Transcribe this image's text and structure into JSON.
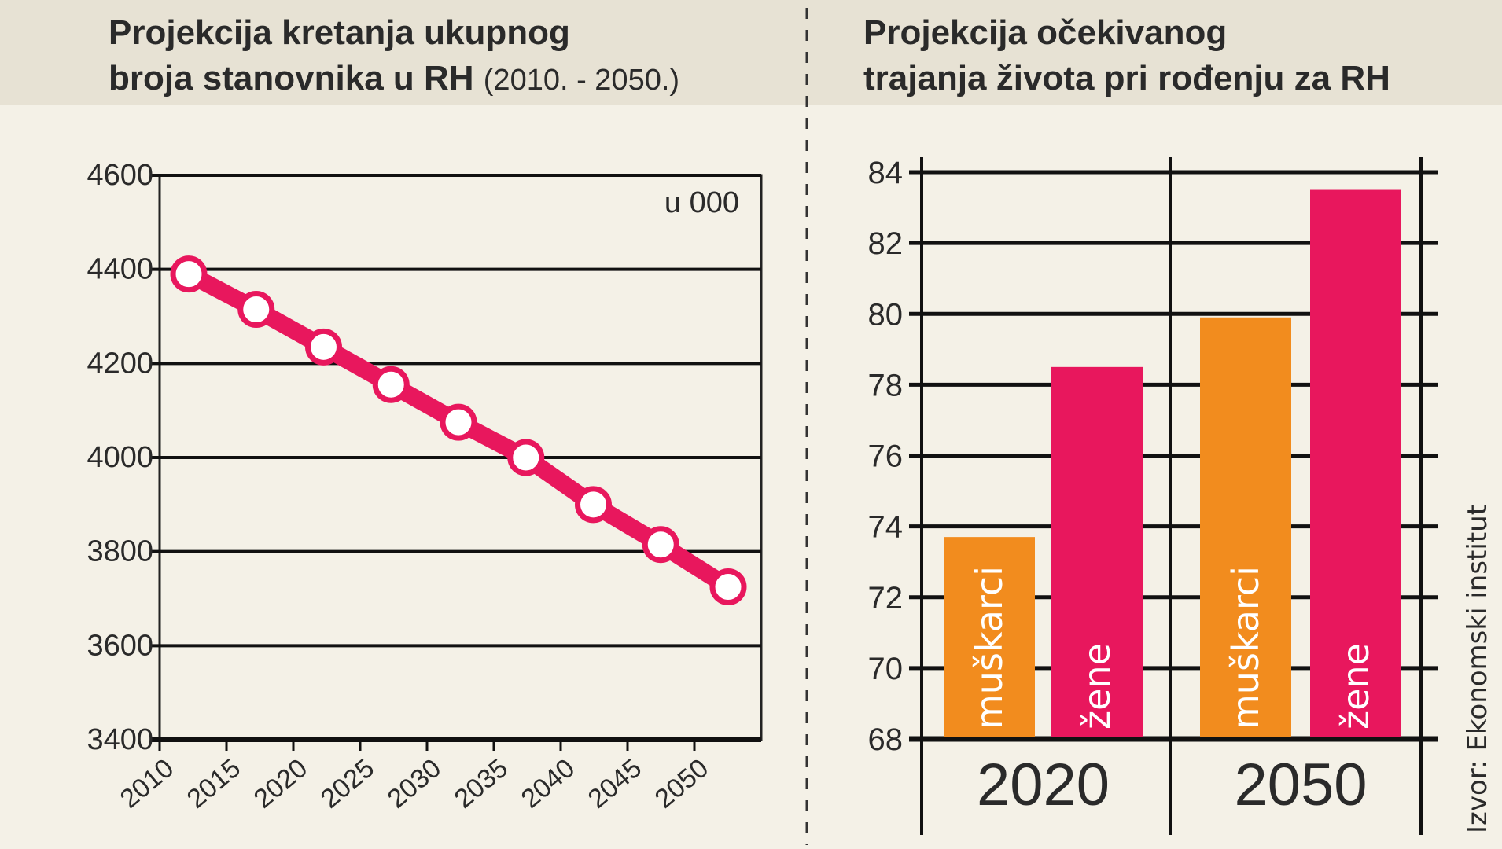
{
  "chart_data": [
    {
      "type": "line",
      "title": "Projekcija kretanja ukupnog broja stanovnika u RH",
      "title_line1": "Projekcija kretanja ukupnog",
      "title_line2": "broja stanovnika u RH",
      "subtitle": "(2010. - 2050.)",
      "unit_label": "u 000",
      "x": [
        "2010",
        "2015",
        "2020",
        "2025",
        "2030",
        "2035",
        "2040",
        "2045",
        "2050"
      ],
      "values": [
        4390,
        4315,
        4235,
        4155,
        4075,
        4000,
        3900,
        3815,
        3725
      ],
      "yticks": [
        "4600",
        "4400",
        "4200",
        "4000",
        "3800",
        "3600",
        "3400"
      ],
      "ylim": [
        3400,
        4600
      ],
      "grid": true,
      "color": "#e8175d"
    },
    {
      "type": "bar",
      "title_line1": "Projekcija očekivanog",
      "title_line2": "trajanja života pri rođenju za RH",
      "categories": [
        "2020",
        "2050"
      ],
      "series": [
        {
          "name": "muškarci",
          "values": [
            73.7,
            79.9
          ],
          "color": "#f28c1e"
        },
        {
          "name": "žene",
          "values": [
            78.5,
            83.5
          ],
          "color": "#e8175d"
        }
      ],
      "yticks": [
        "84",
        "82",
        "80",
        "78",
        "76",
        "74",
        "72",
        "70",
        "68"
      ],
      "ylim": [
        68,
        84
      ],
      "grid": true,
      "source": "Izvor: Ekonomski institut"
    }
  ]
}
